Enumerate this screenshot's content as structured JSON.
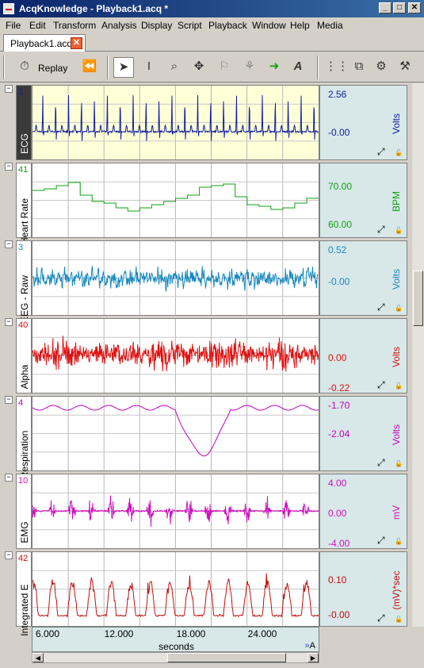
{
  "window": {
    "title": "AcqKnowledge - Playback1.acq *",
    "min": "_",
    "max": "□",
    "close": "✕"
  },
  "menu": [
    "File",
    "Edit",
    "Transform",
    "Analysis",
    "Display",
    "Script",
    "Playback",
    "Window",
    "Help",
    "Media"
  ],
  "tab": {
    "label": "Playback1.acq",
    "close": "✕"
  },
  "toolbar": {
    "replay_label": "Replay"
  },
  "channels": [
    {
      "num": "1",
      "name": "ECG",
      "color": "#1020a0",
      "top": "2.56",
      "mid": "-0.00",
      "bottom": "",
      "unit": "Volts",
      "selected": true
    },
    {
      "num": "41",
      "name": "Heart Rate",
      "color": "#10a010",
      "top": "70.00",
      "mid": "",
      "bottom": "60.00",
      "unit": "BPM",
      "selected": false
    },
    {
      "num": "3",
      "name": "EEG - Raw",
      "color": "#1888c0",
      "top": "0.52",
      "mid": "-0.00",
      "bottom": "",
      "unit": "Volts",
      "selected": false
    },
    {
      "num": "40",
      "name": "Alpha",
      "color": "#e01010",
      "top": "",
      "mid": "0.00",
      "bottom": "-0.22",
      "unit": "Volts",
      "selected": false
    },
    {
      "num": "4",
      "name": "Respiration",
      "color": "#c000c0",
      "top": "-1.70",
      "mid": "-2.04",
      "bottom": "",
      "unit": "Volts",
      "selected": false
    },
    {
      "num": "10",
      "name": "EMG",
      "color": "#d010c0",
      "top": "4.00",
      "mid": "0.00",
      "bottom": "-4.00",
      "unit": "mV",
      "selected": false
    },
    {
      "num": "42",
      "name": "Integrated E",
      "color": "#c01010",
      "top": "",
      "mid": "0.10",
      "bottom": "-0.00",
      "unit": "(mV)*sec",
      "selected": false
    }
  ],
  "time_axis": {
    "ticks": [
      "6.000",
      "12.000",
      "18.000",
      "24.000"
    ],
    "label": "seconds",
    "icon": "A"
  }
}
